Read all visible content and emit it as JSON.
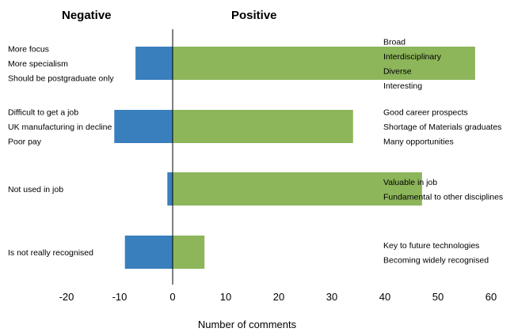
{
  "chart_data": {
    "type": "bar",
    "orientation": "horizontal",
    "headings": {
      "negative": "Negative",
      "positive": "Positive"
    },
    "xlabel": "Number of comments",
    "xlim": [
      -20,
      60
    ],
    "xticks": [
      -20,
      -10,
      0,
      10,
      20,
      30,
      40,
      50,
      60
    ],
    "grid": false,
    "colors": {
      "negative": "#3a7fbd",
      "positive": "#8db55a"
    },
    "rows": [
      {
        "negative_value": -7,
        "positive_value": 57,
        "negative_labels": [
          "More focus",
          "More specialism",
          "Should be postgraduate only"
        ],
        "positive_labels": [
          "Broad",
          "Interdisciplinary",
          "Diverse",
          "Interesting"
        ]
      },
      {
        "negative_value": -11,
        "positive_value": 34,
        "negative_labels": [
          "Difficult to get a job",
          "UK manufacturing in decline",
          "Poor pay"
        ],
        "positive_labels": [
          "Good career prospects",
          "Shortage of Materials graduates",
          "Many opportunities"
        ]
      },
      {
        "negative_value": -1,
        "positive_value": 47,
        "negative_labels": [
          "Not used in job"
        ],
        "positive_labels": [
          "Valuable in job",
          "Fundamental to other disciplines"
        ]
      },
      {
        "negative_value": -9,
        "positive_value": 6,
        "negative_labels": [
          "Is not really recognised"
        ],
        "positive_labels": [
          "Key to future technologies",
          "Becoming widely recognised"
        ]
      }
    ]
  }
}
